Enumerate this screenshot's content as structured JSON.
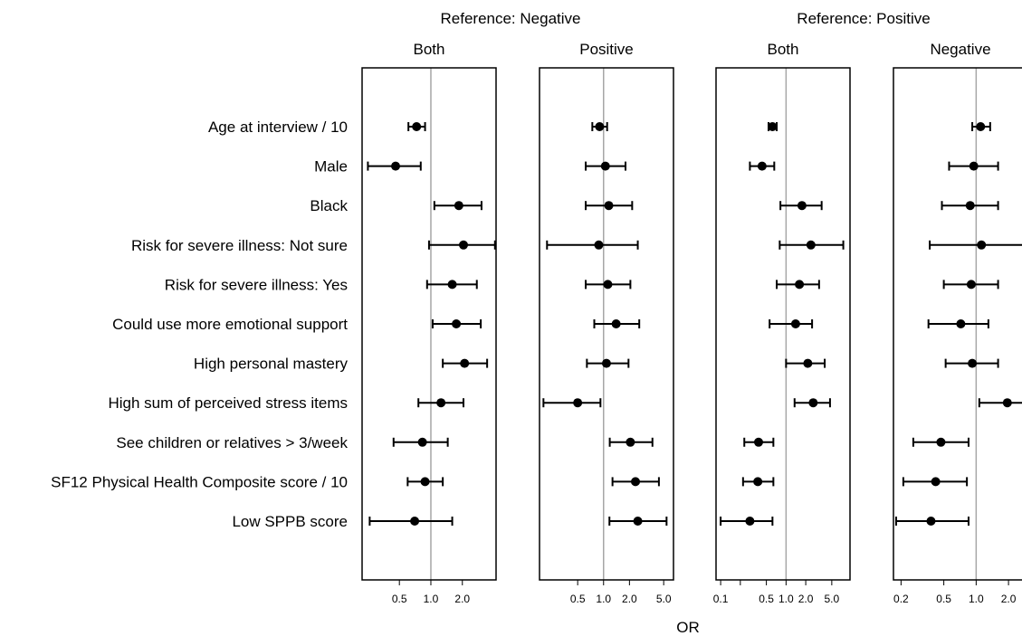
{
  "colors": {
    "reference_line": "#a6a6a6",
    "marks": "#000000"
  },
  "chart_data": {
    "type": "scatter",
    "style": "forest plot with 95% intervals, log x-scale",
    "xlabel": "OR",
    "groups": [
      {
        "title": "Reference: Negative"
      },
      {
        "title": "Reference: Positive"
      }
    ],
    "categories": [
      "Age at interview / 10",
      "Male",
      "Black",
      "Risk for severe illness: Not sure",
      "Risk for severe illness: Yes",
      "Could use more emotional support",
      "High personal mastery",
      "High sum of perceived stress items",
      "See children or relatives > 3/week",
      "SF12 Physical Health Composite score / 10",
      "Low SPPB score"
    ],
    "panels": [
      {
        "group": "Reference: Negative",
        "title": "Both",
        "log_scale": true,
        "xlim": [
          0.22,
          4.2
        ],
        "ticks": [
          0.5,
          1.0,
          2.0
        ],
        "tick_labels": [
          "0.5",
          "1.0",
          "2.0"
        ],
        "reference": 1.0,
        "estimates": [
          {
            "or": 0.73,
            "lo": 0.61,
            "hi": 0.88
          },
          {
            "or": 0.46,
            "lo": 0.25,
            "hi": 0.8
          },
          {
            "or": 1.85,
            "lo": 1.08,
            "hi": 3.05
          },
          {
            "or": 2.05,
            "lo": 0.96,
            "hi": 4.1
          },
          {
            "or": 1.6,
            "lo": 0.92,
            "hi": 2.75
          },
          {
            "or": 1.75,
            "lo": 1.04,
            "hi": 3.0
          },
          {
            "or": 2.1,
            "lo": 1.3,
            "hi": 3.45
          },
          {
            "or": 1.25,
            "lo": 0.76,
            "hi": 2.05
          },
          {
            "or": 0.83,
            "lo": 0.44,
            "hi": 1.45
          },
          {
            "or": 0.88,
            "lo": 0.6,
            "hi": 1.3
          },
          {
            "or": 0.7,
            "lo": 0.26,
            "hi": 1.6
          }
        ]
      },
      {
        "group": "Reference: Negative",
        "title": "Positive",
        "log_scale": true,
        "xlim": [
          0.18,
          6.5
        ],
        "ticks": [
          0.5,
          1.0,
          2.0,
          5.0
        ],
        "tick_labels": [
          "0.5",
          "1.0",
          "2.0",
          "5.0"
        ],
        "reference": 1.0,
        "estimates": [
          {
            "or": 0.9,
            "lo": 0.74,
            "hi": 1.1
          },
          {
            "or": 1.05,
            "lo": 0.62,
            "hi": 1.8
          },
          {
            "or": 1.15,
            "lo": 0.62,
            "hi": 2.15
          },
          {
            "or": 0.88,
            "lo": 0.22,
            "hi": 2.5
          },
          {
            "or": 1.12,
            "lo": 0.62,
            "hi": 2.05
          },
          {
            "or": 1.4,
            "lo": 0.78,
            "hi": 2.6
          },
          {
            "or": 1.08,
            "lo": 0.64,
            "hi": 1.95
          },
          {
            "or": 0.5,
            "lo": 0.2,
            "hi": 0.92
          },
          {
            "or": 2.05,
            "lo": 1.18,
            "hi": 3.7
          },
          {
            "or": 2.35,
            "lo": 1.27,
            "hi": 4.4
          },
          {
            "or": 2.5,
            "lo": 1.17,
            "hi": 5.4
          }
        ]
      },
      {
        "group": "Reference: Positive",
        "title": "Both",
        "log_scale": true,
        "xlim": [
          0.085,
          9.5
        ],
        "ticks": [
          0.1,
          0.2,
          0.5,
          1.0,
          2.0,
          5.0
        ],
        "tick_labels": [
          "0.1",
          "",
          "0.5",
          "1.0",
          "2.0",
          "5.0"
        ],
        "reference": 1.0,
        "estimates": [
          {
            "or": 0.62,
            "lo": 0.54,
            "hi": 0.72
          },
          {
            "or": 0.43,
            "lo": 0.28,
            "hi": 0.66
          },
          {
            "or": 1.75,
            "lo": 0.82,
            "hi": 3.5
          },
          {
            "or": 2.4,
            "lo": 0.8,
            "hi": 7.5
          },
          {
            "or": 1.6,
            "lo": 0.72,
            "hi": 3.2
          },
          {
            "or": 1.4,
            "lo": 0.56,
            "hi": 2.5
          },
          {
            "or": 2.15,
            "lo": 1.0,
            "hi": 3.9
          },
          {
            "or": 2.6,
            "lo": 1.35,
            "hi": 4.7
          },
          {
            "or": 0.38,
            "lo": 0.23,
            "hi": 0.64
          },
          {
            "or": 0.37,
            "lo": 0.22,
            "hi": 0.64
          },
          {
            "or": 0.28,
            "lo": 0.1,
            "hi": 0.62
          }
        ]
      },
      {
        "group": "Reference: Positive",
        "title": "Negative",
        "log_scale": true,
        "xlim": [
          0.17,
          3.0
        ],
        "ticks": [
          0.2,
          0.5,
          1.0,
          2.0
        ],
        "tick_labels": [
          "0.2",
          "0.5",
          "1.0",
          "2.0"
        ],
        "reference": 1.0,
        "estimates": [
          {
            "or": 1.1,
            "lo": 0.92,
            "hi": 1.35
          },
          {
            "or": 0.95,
            "lo": 0.56,
            "hi": 1.6
          },
          {
            "or": 0.88,
            "lo": 0.48,
            "hi": 1.6
          },
          {
            "or": 1.12,
            "lo": 0.37,
            "hi": 2.9
          },
          {
            "or": 0.9,
            "lo": 0.5,
            "hi": 1.6
          },
          {
            "or": 0.72,
            "lo": 0.36,
            "hi": 1.3
          },
          {
            "or": 0.92,
            "lo": 0.52,
            "hi": 1.6
          },
          {
            "or": 1.95,
            "lo": 1.07,
            "hi": 3.3
          },
          {
            "or": 0.47,
            "lo": 0.26,
            "hi": 0.85
          },
          {
            "or": 0.42,
            "lo": 0.21,
            "hi": 0.82
          },
          {
            "or": 0.38,
            "lo": 0.18,
            "hi": 0.85
          }
        ]
      }
    ]
  }
}
